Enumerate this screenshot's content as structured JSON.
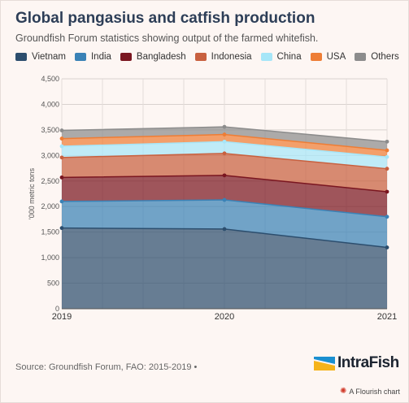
{
  "title": "Global pangasius and catfish production",
  "subtitle": "Groundfish Forum statistics showing output of the farmed whitefish.",
  "source": "Source: Groundfish Forum, FAO: 2015-2019",
  "source_dot": "•",
  "brand": {
    "name": "IntraFish",
    "mark_icon": "intrafish-logo-icon"
  },
  "attribution": {
    "icon": "flourish-logo-icon",
    "text": "A Flourish chart"
  },
  "chart_data": {
    "type": "area",
    "stacked": true,
    "x": [
      "2019",
      "2020",
      "2021"
    ],
    "ylabel": "'000 metric tons",
    "xlabel": "",
    "ylim": [
      0,
      4500
    ],
    "yticks": [
      "0",
      "500",
      "1,000",
      "1,500",
      "2,000",
      "2,500",
      "3,000",
      "3,500",
      "4,000",
      "4,500"
    ],
    "ytick_values": [
      0,
      500,
      1000,
      1500,
      2000,
      2500,
      3000,
      3500,
      4000,
      4500
    ],
    "grid": true,
    "legend_position": "top-left",
    "series": [
      {
        "name": "Vietnam",
        "color": "#2c4e6e",
        "values": [
          1580,
          1560,
          1200
        ]
      },
      {
        "name": "India",
        "color": "#3a82b6",
        "values": [
          520,
          570,
          600
        ]
      },
      {
        "name": "Bangladesh",
        "color": "#7a1620",
        "values": [
          470,
          480,
          490
        ]
      },
      {
        "name": "Indonesia",
        "color": "#c8603f",
        "values": [
          390,
          430,
          450
        ]
      },
      {
        "name": "China",
        "color": "#a6e6f8",
        "values": [
          220,
          230,
          230
        ]
      },
      {
        "name": "USA",
        "color": "#ee7d35",
        "values": [
          150,
          140,
          130
        ]
      },
      {
        "name": "Others",
        "color": "#8c8c8c",
        "values": [
          160,
          150,
          170
        ]
      }
    ]
  }
}
